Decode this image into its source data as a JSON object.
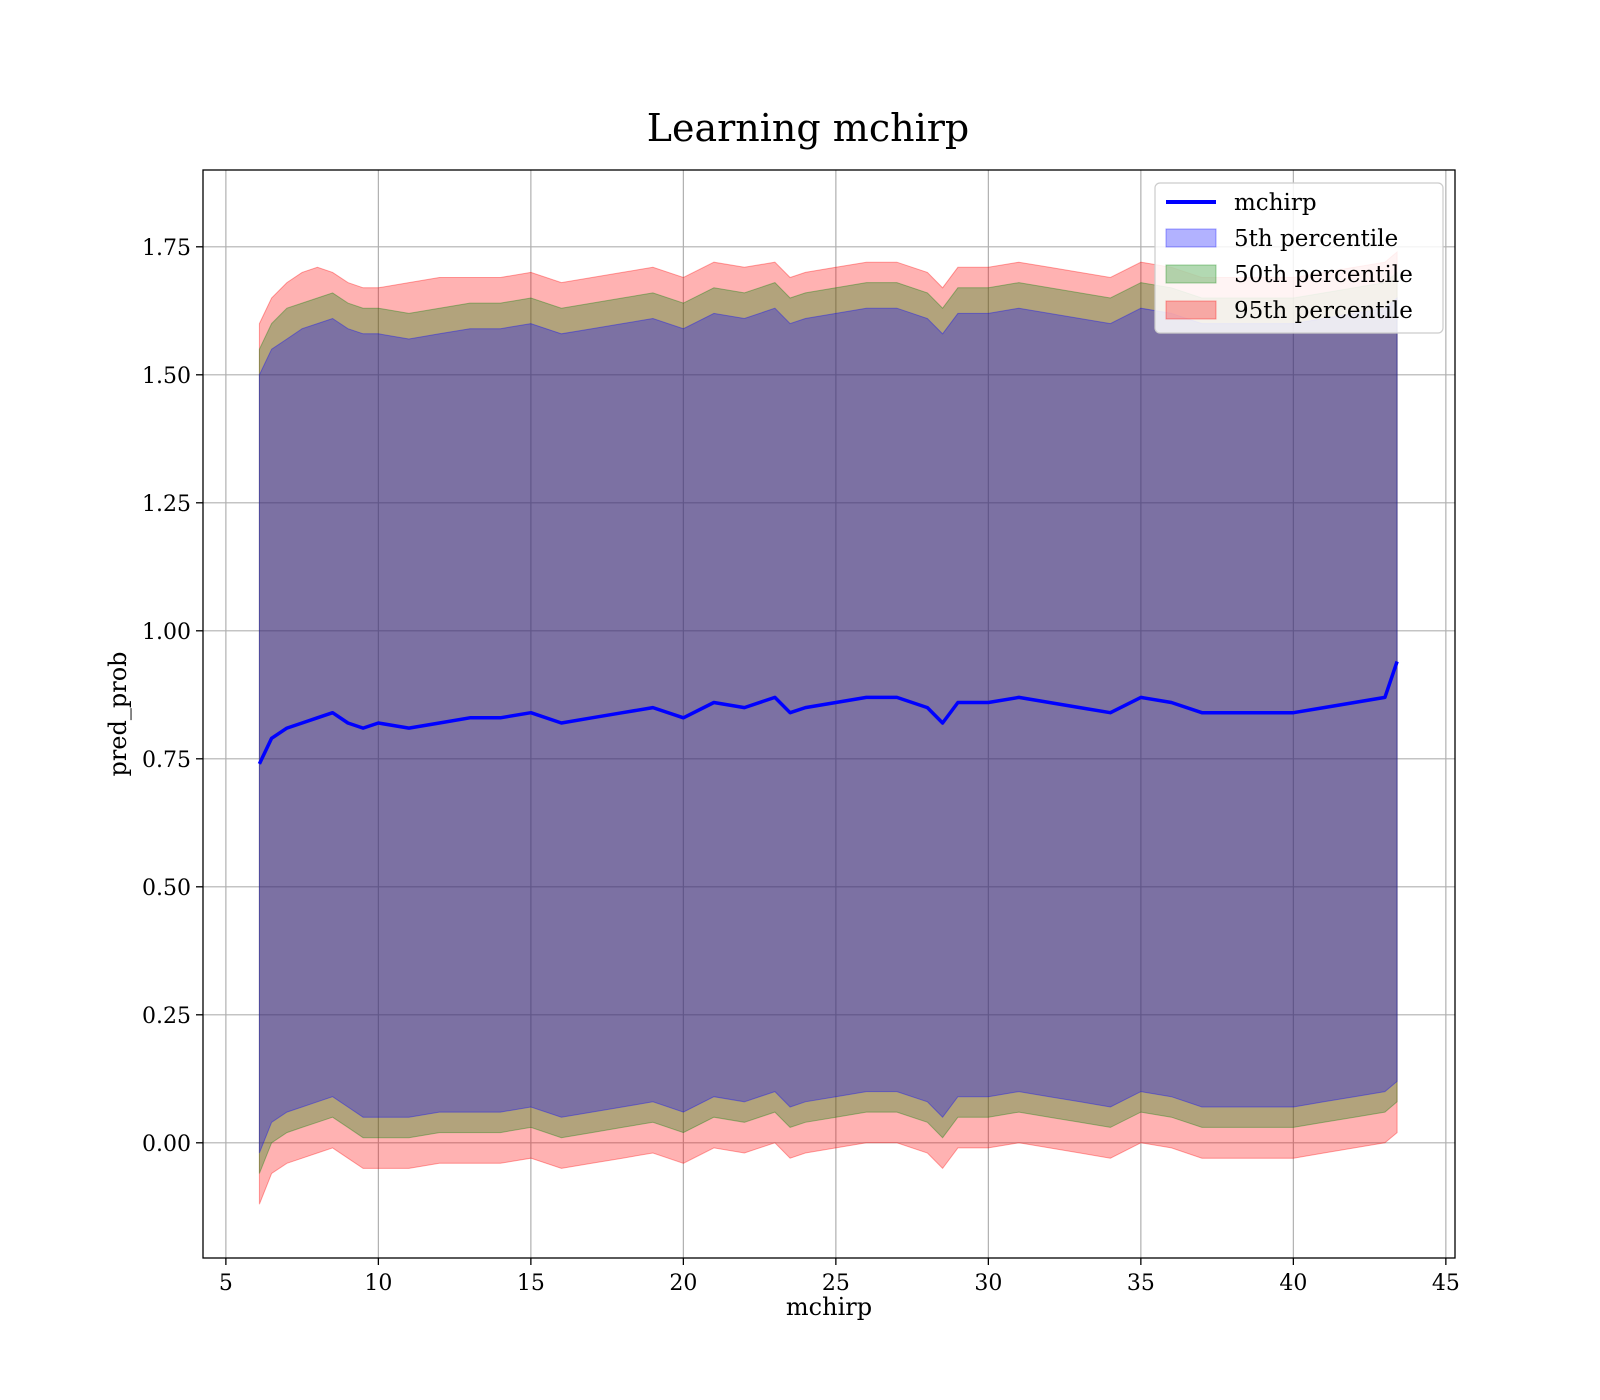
{
  "chart_data": {
    "type": "line",
    "title": "Learning mchirp",
    "xlabel": "mchirp",
    "ylabel": "pred_prob",
    "xlim": [
      4.25,
      45.3
    ],
    "ylim": [
      -0.225,
      1.9
    ],
    "xticks": [
      5,
      10,
      15,
      20,
      25,
      30,
      35,
      40,
      45
    ],
    "xtick_labels": [
      "5",
      "10",
      "15",
      "20",
      "25",
      "30",
      "35",
      "40",
      "45"
    ],
    "yticks": [
      0.0,
      0.25,
      0.5,
      0.75,
      1.0,
      1.25,
      1.5,
      1.75
    ],
    "ytick_labels": [
      "0.00",
      "0.25",
      "0.50",
      "0.75",
      "1.00",
      "1.25",
      "1.50",
      "1.75"
    ],
    "grid": true,
    "legend_position": "top-right",
    "colors": {
      "line": "#0000ff",
      "p5": "#0000ff",
      "p50": "#008000",
      "p95": "#ff0000"
    },
    "series": [
      {
        "name": "mchirp",
        "kind": "line",
        "x": [
          6.1,
          6.5,
          7,
          7.5,
          8,
          8.5,
          9,
          9.5,
          10,
          11,
          12,
          13,
          14,
          15,
          16,
          17,
          18,
          19,
          20,
          21,
          22,
          23,
          23.5,
          24,
          25,
          26,
          27,
          28,
          28.5,
          29,
          30,
          31,
          32,
          33,
          34,
          35,
          36,
          37,
          38,
          39,
          40,
          41,
          42,
          43,
          43.4
        ],
        "y": [
          0.74,
          0.79,
          0.81,
          0.82,
          0.83,
          0.84,
          0.82,
          0.81,
          0.82,
          0.81,
          0.82,
          0.83,
          0.83,
          0.84,
          0.82,
          0.83,
          0.84,
          0.85,
          0.83,
          0.86,
          0.85,
          0.87,
          0.84,
          0.85,
          0.86,
          0.87,
          0.87,
          0.85,
          0.82,
          0.86,
          0.86,
          0.87,
          0.86,
          0.85,
          0.84,
          0.87,
          0.86,
          0.84,
          0.84,
          0.84,
          0.84,
          0.85,
          0.86,
          0.87,
          0.94
        ]
      },
      {
        "name": "5th percentile",
        "kind": "band",
        "x": [
          6.1,
          6.5,
          7,
          7.5,
          8,
          8.5,
          9,
          9.5,
          10,
          11,
          12,
          13,
          14,
          15,
          16,
          17,
          18,
          19,
          20,
          21,
          22,
          23,
          23.5,
          24,
          25,
          26,
          27,
          28,
          28.5,
          29,
          30,
          31,
          32,
          33,
          34,
          35,
          36,
          37,
          38,
          39,
          40,
          41,
          42,
          43,
          43.4
        ],
        "lower": [
          -0.02,
          0.04,
          0.06,
          0.07,
          0.08,
          0.09,
          0.07,
          0.05,
          0.05,
          0.05,
          0.06,
          0.06,
          0.06,
          0.07,
          0.05,
          0.06,
          0.07,
          0.08,
          0.06,
          0.09,
          0.08,
          0.1,
          0.07,
          0.08,
          0.09,
          0.1,
          0.1,
          0.08,
          0.05,
          0.09,
          0.09,
          0.1,
          0.09,
          0.08,
          0.07,
          0.1,
          0.09,
          0.07,
          0.07,
          0.07,
          0.07,
          0.08,
          0.09,
          0.1,
          0.12
        ],
        "upper": [
          1.5,
          1.55,
          1.57,
          1.59,
          1.6,
          1.61,
          1.59,
          1.58,
          1.58,
          1.57,
          1.58,
          1.59,
          1.59,
          1.6,
          1.58,
          1.59,
          1.6,
          1.61,
          1.59,
          1.62,
          1.61,
          1.63,
          1.6,
          1.61,
          1.62,
          1.63,
          1.63,
          1.61,
          1.58,
          1.62,
          1.62,
          1.63,
          1.62,
          1.61,
          1.6,
          1.63,
          1.62,
          1.6,
          1.6,
          1.6,
          1.6,
          1.61,
          1.62,
          1.63,
          1.65
        ]
      },
      {
        "name": "50th percentile",
        "kind": "band",
        "x": [
          6.1,
          6.5,
          7,
          7.5,
          8,
          8.5,
          9,
          9.5,
          10,
          11,
          12,
          13,
          14,
          15,
          16,
          17,
          18,
          19,
          20,
          21,
          22,
          23,
          23.5,
          24,
          25,
          26,
          27,
          28,
          28.5,
          29,
          30,
          31,
          32,
          33,
          34,
          35,
          36,
          37,
          38,
          39,
          40,
          41,
          42,
          43,
          43.4
        ],
        "lower": [
          -0.06,
          0.0,
          0.02,
          0.03,
          0.04,
          0.05,
          0.03,
          0.01,
          0.01,
          0.01,
          0.02,
          0.02,
          0.02,
          0.03,
          0.01,
          0.02,
          0.03,
          0.04,
          0.02,
          0.05,
          0.04,
          0.06,
          0.03,
          0.04,
          0.05,
          0.06,
          0.06,
          0.04,
          0.01,
          0.05,
          0.05,
          0.06,
          0.05,
          0.04,
          0.03,
          0.06,
          0.05,
          0.03,
          0.03,
          0.03,
          0.03,
          0.04,
          0.05,
          0.06,
          0.08
        ],
        "upper": [
          1.55,
          1.6,
          1.63,
          1.64,
          1.65,
          1.66,
          1.64,
          1.63,
          1.63,
          1.62,
          1.63,
          1.64,
          1.64,
          1.65,
          1.63,
          1.64,
          1.65,
          1.66,
          1.64,
          1.67,
          1.66,
          1.68,
          1.65,
          1.66,
          1.67,
          1.68,
          1.68,
          1.66,
          1.63,
          1.67,
          1.67,
          1.68,
          1.67,
          1.66,
          1.65,
          1.68,
          1.67,
          1.65,
          1.65,
          1.65,
          1.65,
          1.66,
          1.67,
          1.68,
          1.7
        ]
      },
      {
        "name": "95th percentile",
        "kind": "band",
        "x": [
          6.1,
          6.5,
          7,
          7.5,
          8,
          8.5,
          9,
          9.5,
          10,
          11,
          12,
          13,
          14,
          15,
          16,
          17,
          18,
          19,
          20,
          21,
          22,
          23,
          23.5,
          24,
          25,
          26,
          27,
          28,
          28.5,
          29,
          30,
          31,
          32,
          33,
          34,
          35,
          36,
          37,
          38,
          39,
          40,
          41,
          42,
          43,
          43.4
        ],
        "lower": [
          -0.12,
          -0.06,
          -0.04,
          -0.03,
          -0.02,
          -0.01,
          -0.03,
          -0.05,
          -0.05,
          -0.05,
          -0.04,
          -0.04,
          -0.04,
          -0.03,
          -0.05,
          -0.04,
          -0.03,
          -0.02,
          -0.04,
          -0.01,
          -0.02,
          0.0,
          -0.03,
          -0.02,
          -0.01,
          0.0,
          0.0,
          -0.02,
          -0.05,
          -0.01,
          -0.01,
          0.0,
          -0.01,
          -0.02,
          -0.03,
          0.0,
          -0.01,
          -0.03,
          -0.03,
          -0.03,
          -0.03,
          -0.02,
          -0.01,
          0.0,
          0.02
        ],
        "upper": [
          1.6,
          1.65,
          1.68,
          1.7,
          1.71,
          1.7,
          1.68,
          1.67,
          1.67,
          1.68,
          1.69,
          1.69,
          1.69,
          1.7,
          1.68,
          1.69,
          1.7,
          1.71,
          1.69,
          1.72,
          1.71,
          1.72,
          1.69,
          1.7,
          1.71,
          1.72,
          1.72,
          1.7,
          1.67,
          1.71,
          1.71,
          1.72,
          1.71,
          1.7,
          1.69,
          1.72,
          1.71,
          1.69,
          1.69,
          1.69,
          1.69,
          1.7,
          1.71,
          1.72,
          1.74
        ]
      }
    ]
  }
}
